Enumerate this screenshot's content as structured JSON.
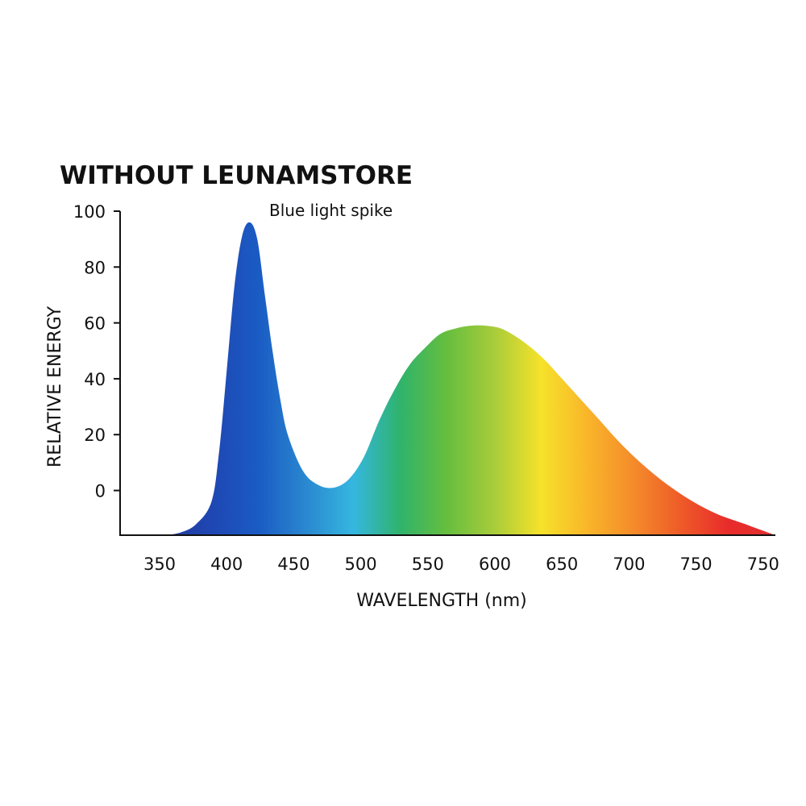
{
  "chart_data": {
    "type": "area",
    "title": "WITHOUT LEUNAMSTORE",
    "annotation": "Blue light spike",
    "xlabel": "WAVELENGTH (nm)",
    "ylabel": "RELATIVE ENERGY",
    "x_tick_labels": [
      "350",
      "400",
      "450",
      "500",
      "550",
      "600",
      "650",
      "700",
      "750",
      "750"
    ],
    "y_tick_labels": [
      "100",
      "80",
      "60",
      "40",
      "20",
      "0"
    ],
    "y_tick_values": [
      100,
      80,
      60,
      40,
      20,
      0
    ],
    "xlim": [
      330,
      760
    ],
    "ylim": [
      -16,
      100
    ],
    "grid": false,
    "series": [
      {
        "x": [
          360,
          370,
          380,
          390,
          395,
          400,
          405,
          410,
          415,
          420,
          425,
          430,
          435,
          440,
          450,
          460,
          470,
          480,
          490,
          500,
          510,
          520,
          530,
          540,
          550,
          560,
          570,
          580,
          590,
          600,
          610,
          620,
          640,
          660,
          680,
          700,
          720,
          740,
          760
        ],
        "values": [
          -16,
          -15,
          -12,
          -4,
          14,
          43,
          73,
          91,
          96,
          90,
          70,
          50,
          33,
          20,
          7,
          2,
          1,
          4,
          12,
          25,
          36,
          45,
          51,
          56,
          58,
          59,
          59,
          58,
          55,
          51,
          46,
          40,
          28,
          16,
          6,
          -2,
          -8,
          -12,
          -16
        ]
      }
    ],
    "gradient_colors": [
      "#223a9e",
      "#1f47b3",
      "#1a5cc4",
      "#2a88d0",
      "#35b7e0",
      "#2fb36b",
      "#66be3e",
      "#a8cc3a",
      "#f6e22a",
      "#f9b52a",
      "#f48a2a",
      "#ee5a28",
      "#e82b2b",
      "#e33030"
    ]
  }
}
